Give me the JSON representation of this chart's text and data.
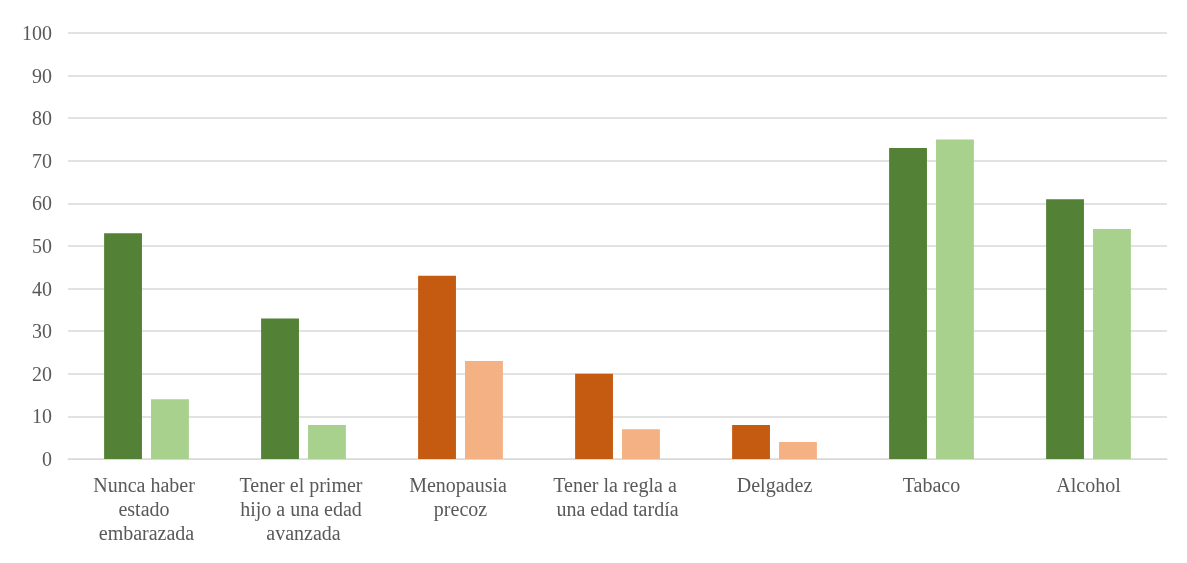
{
  "chart_data": {
    "type": "bar",
    "categories": [
      "Nunca haber estado embarazada",
      "Tener el primer hijo a una edad avanzada",
      "Menopausia precoz",
      "Tener la regla a una edad tardía",
      "Delgadez",
      "Tabaco",
      "Alcohol"
    ],
    "series": [
      {
        "colors": [
          "#538135",
          "#538135",
          "#c55a11",
          "#c55a11",
          "#c55a11",
          "#538135",
          "#538135"
        ],
        "values": [
          53,
          33,
          43,
          20,
          8,
          73,
          61
        ]
      },
      {
        "colors": [
          "#a9d18e",
          "#a9d18e",
          "#f4b183",
          "#f4b183",
          "#f4b183",
          "#a9d18e",
          "#a9d18e"
        ],
        "values": [
          14,
          8,
          23,
          7,
          4,
          75,
          54
        ]
      }
    ],
    "ylim": [
      0,
      100
    ],
    "yticks": [
      0,
      10,
      20,
      30,
      40,
      50,
      60,
      70,
      80,
      90,
      100
    ],
    "grid": "y"
  }
}
